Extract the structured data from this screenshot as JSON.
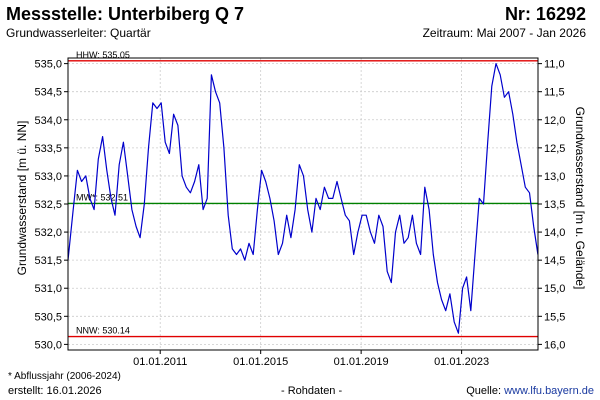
{
  "header": {
    "title": "Messstelle: Unterbiberg Q 7",
    "number": "Nr: 16292",
    "aquifer": "Grundwasserleiter: Quartär",
    "period": "Zeitraum: Mai 2007 - Jan 2026"
  },
  "footer": {
    "footnote": "* Abflussjahr (2006-2024)",
    "created": "erstellt:  16.01.2026",
    "raw": "- Rohdaten -",
    "source_label": "Quelle:",
    "source_url": "www.lfu.bayern.de"
  },
  "chart_data": {
    "type": "line",
    "ylabel": "Grundwasserstand [m ü. NN]",
    "ylabel_right": "Grundwasserstand [m u. Gelände]",
    "ylim": [
      529.9,
      535.1
    ],
    "y_ticks": [
      "530,0",
      "530,5",
      "531,0",
      "531,5",
      "532,0",
      "532,5",
      "533,0",
      "533,5",
      "534,0",
      "534,5",
      "535,0"
    ],
    "y_tick_values": [
      530.0,
      530.5,
      531.0,
      531.5,
      532.0,
      532.5,
      533.0,
      533.5,
      534.0,
      534.5,
      535.0
    ],
    "y_right_ticks": [
      "11,0",
      "11,5",
      "12,0",
      "12,5",
      "13,0",
      "13,5",
      "14,0",
      "14,5",
      "15,0",
      "15,5",
      "16,0"
    ],
    "y_right_values": [
      11.0,
      11.5,
      12.0,
      12.5,
      13.0,
      13.5,
      14.0,
      14.5,
      15.0,
      15.5,
      16.0
    ],
    "xlim": [
      "2007-05-01",
      "2026-01-16"
    ],
    "x_ticks": [
      "01.01.2011",
      "01.01.2015",
      "01.01.2019",
      "01.01.2023"
    ],
    "x_tick_dates": [
      "2011-01-01",
      "2015-01-01",
      "2019-01-01",
      "2023-01-01"
    ],
    "reference_lines": [
      {
        "label": "HHW: 535.05",
        "value": 535.05,
        "color": "#e00000"
      },
      {
        "label": "MW*: 532.51",
        "value": 532.51,
        "color": "#008000"
      },
      {
        "label": "NNW: 530.14",
        "value": 530.14,
        "color": "#e00000"
      }
    ],
    "series_color": "#0000cc",
    "series": [
      {
        "x": [
          "2007-05-01",
          "2007-07-15",
          "2007-09-15",
          "2007-11-15",
          "2008-01-15",
          "2008-03-15",
          "2008-05-15",
          "2008-07-15",
          "2008-09-15",
          "2008-11-15",
          "2009-01-15",
          "2009-03-15",
          "2009-05-15",
          "2009-07-15",
          "2009-09-15",
          "2009-11-15",
          "2010-01-15",
          "2010-03-15",
          "2010-05-15",
          "2010-07-15",
          "2010-09-15",
          "2010-11-15",
          "2011-01-15",
          "2011-03-15",
          "2011-05-15",
          "2011-07-15",
          "2011-09-15",
          "2011-11-15",
          "2012-01-15",
          "2012-03-15",
          "2012-05-15",
          "2012-07-15",
          "2012-09-15",
          "2012-11-15",
          "2013-01-15",
          "2013-03-15",
          "2013-05-15",
          "2013-07-15",
          "2013-09-15",
          "2013-11-15",
          "2014-01-15",
          "2014-03-15",
          "2014-05-15",
          "2014-07-15",
          "2014-09-15",
          "2014-11-15",
          "2015-01-15",
          "2015-03-15",
          "2015-05-15",
          "2015-07-15",
          "2015-09-15",
          "2015-11-15",
          "2016-01-15",
          "2016-03-15",
          "2016-05-15",
          "2016-07-15",
          "2016-09-15",
          "2016-11-15",
          "2017-01-15",
          "2017-03-15",
          "2017-05-15",
          "2017-07-15",
          "2017-09-15",
          "2017-11-15",
          "2018-01-15",
          "2018-03-15",
          "2018-05-15",
          "2018-07-15",
          "2018-09-15",
          "2018-11-15",
          "2019-01-15",
          "2019-03-15",
          "2019-05-15",
          "2019-07-15",
          "2019-09-15",
          "2019-11-15",
          "2020-01-15",
          "2020-03-15",
          "2020-05-15",
          "2020-07-15",
          "2020-09-15",
          "2020-11-15",
          "2021-01-15",
          "2021-03-15",
          "2021-05-15",
          "2021-07-15",
          "2021-09-15",
          "2021-11-15",
          "2022-01-15",
          "2022-03-15",
          "2022-05-15",
          "2022-07-15",
          "2022-09-15",
          "2022-11-15",
          "2023-01-15",
          "2023-03-15",
          "2023-05-15",
          "2023-07-15",
          "2023-09-15",
          "2023-11-15",
          "2024-01-15",
          "2024-03-15",
          "2024-05-15",
          "2024-07-15",
          "2024-09-15",
          "2024-11-15",
          "2025-01-15",
          "2025-03-15",
          "2025-05-15",
          "2025-07-15",
          "2025-09-15",
          "2025-11-15",
          "2026-01-15"
        ],
        "y": [
          531.5,
          532.4,
          533.1,
          532.9,
          533.0,
          532.6,
          532.4,
          533.3,
          533.7,
          533.1,
          532.6,
          532.3,
          533.2,
          533.6,
          533.0,
          532.4,
          532.1,
          531.9,
          532.5,
          533.5,
          534.3,
          534.2,
          534.3,
          533.6,
          533.4,
          534.1,
          533.9,
          533.0,
          532.8,
          532.7,
          532.9,
          533.2,
          532.4,
          532.6,
          534.8,
          534.5,
          534.3,
          533.5,
          532.3,
          531.7,
          531.6,
          531.7,
          531.5,
          531.8,
          531.6,
          532.4,
          533.1,
          532.9,
          532.6,
          532.2,
          531.6,
          531.8,
          532.3,
          531.9,
          532.4,
          533.2,
          533.0,
          532.4,
          532.0,
          532.6,
          532.4,
          532.8,
          532.6,
          532.6,
          532.9,
          532.6,
          532.3,
          532.2,
          531.6,
          532.0,
          532.3,
          532.3,
          532.0,
          531.8,
          532.3,
          532.1,
          531.3,
          531.1,
          532.0,
          532.3,
          531.8,
          531.9,
          532.3,
          531.8,
          531.6,
          532.8,
          532.4,
          531.6,
          531.1,
          530.8,
          530.6,
          530.9,
          530.4,
          530.2,
          531.0,
          531.2,
          530.6,
          531.6,
          532.6,
          532.5,
          533.6,
          534.6,
          535.0,
          534.8,
          534.4,
          534.5,
          534.1,
          533.6,
          533.2,
          532.8,
          532.7,
          532.1,
          531.6
        ]
      }
    ]
  }
}
